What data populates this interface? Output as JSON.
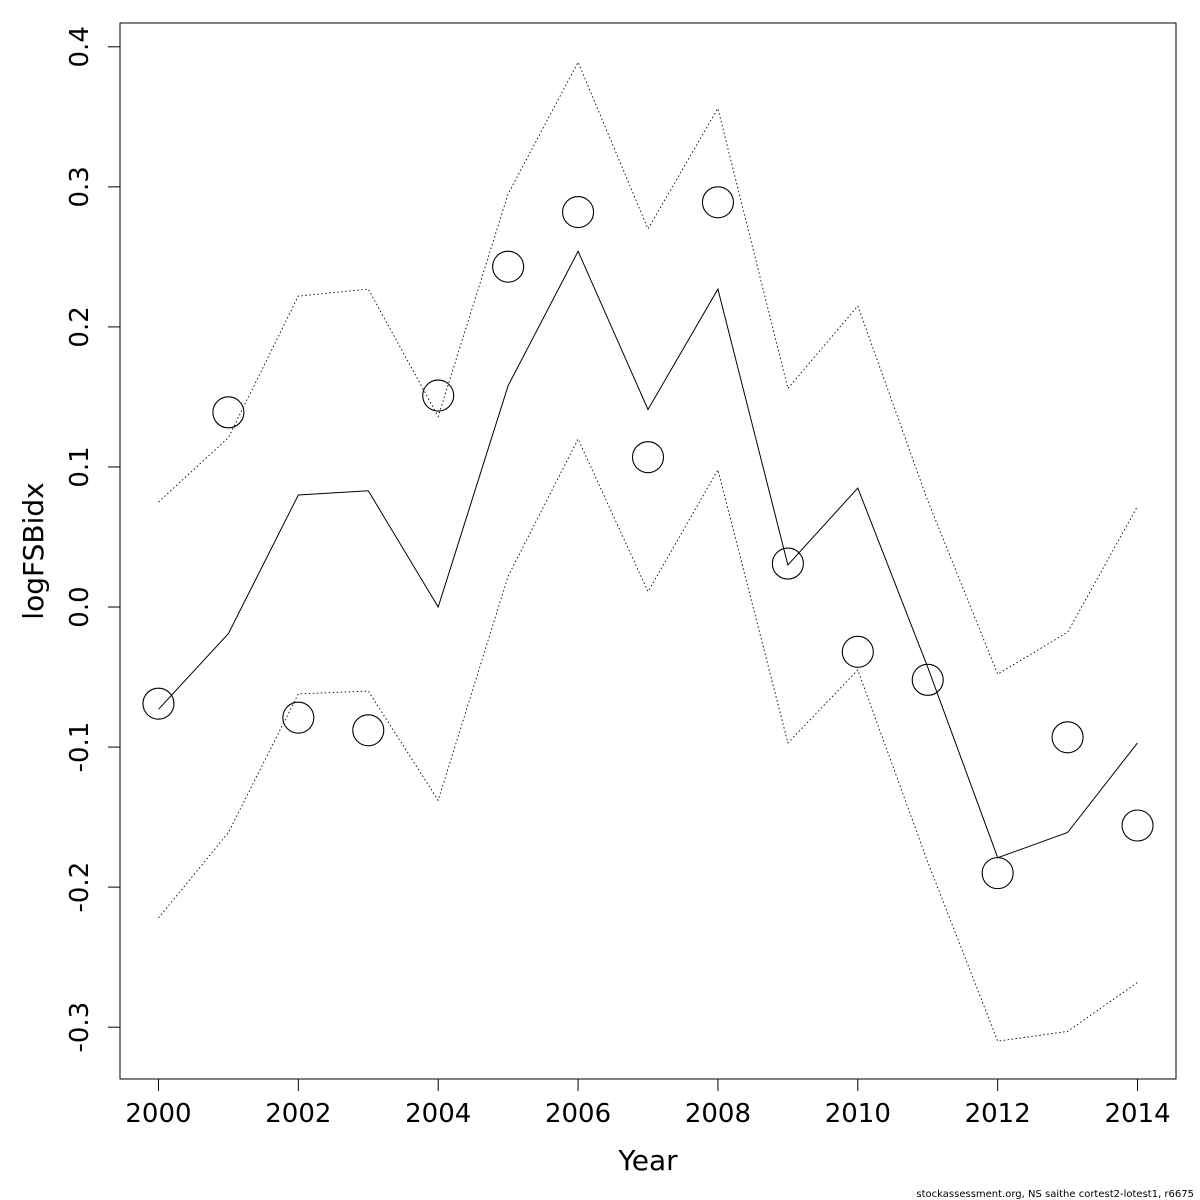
{
  "chart_data": {
    "type": "line",
    "xlabel": "Year",
    "ylabel": "logFSBidx",
    "xlim": [
      1999.45,
      2014.55
    ],
    "ylim": [
      -0.337,
      0.417
    ],
    "x_ticks": [
      2000,
      2002,
      2004,
      2006,
      2008,
      2010,
      2012,
      2014
    ],
    "x_tick_labels": [
      "2000",
      "2002",
      "2004",
      "2006",
      "2008",
      "2010",
      "2012",
      "2014"
    ],
    "y_ticks": [
      -0.3,
      -0.2,
      -0.1,
      0.0,
      0.1,
      0.2,
      0.3,
      0.4
    ],
    "y_tick_labels": [
      "-0.3",
      "-0.2",
      "-0.1",
      "0.0",
      "0.1",
      "0.2",
      "0.3",
      "0.4"
    ],
    "grid": false,
    "x": [
      2000,
      2001,
      2002,
      2003,
      2004,
      2005,
      2006,
      2007,
      2008,
      2009,
      2010,
      2011,
      2012,
      2013,
      2014
    ],
    "series": [
      {
        "style": "points",
        "values": [
          -0.069,
          0.139,
          -0.079,
          -0.088,
          0.151,
          0.243,
          0.282,
          0.107,
          0.289,
          0.031,
          -0.032,
          -0.052,
          -0.19,
          -0.093,
          -0.156
        ]
      },
      {
        "style": "solid",
        "values": [
          -0.073,
          -0.019,
          0.08,
          0.083,
          0.0,
          0.158,
          0.254,
          0.141,
          0.227,
          0.03,
          0.085,
          -0.043,
          -0.179,
          -0.161,
          -0.097
        ]
      },
      {
        "style": "dotted",
        "values": [
          0.075,
          0.121,
          0.222,
          0.227,
          0.136,
          0.295,
          0.389,
          0.27,
          0.356,
          0.156,
          0.215,
          0.076,
          -0.048,
          -0.018,
          0.072
        ]
      },
      {
        "style": "dotted",
        "values": [
          -0.222,
          -0.161,
          -0.062,
          -0.06,
          -0.138,
          0.022,
          0.12,
          0.011,
          0.098,
          -0.097,
          -0.045,
          -0.182,
          -0.31,
          -0.303,
          -0.268
        ]
      }
    ]
  },
  "footer_text": "stockassessment.org, NS saithe cortest2-lotest1, r6675"
}
